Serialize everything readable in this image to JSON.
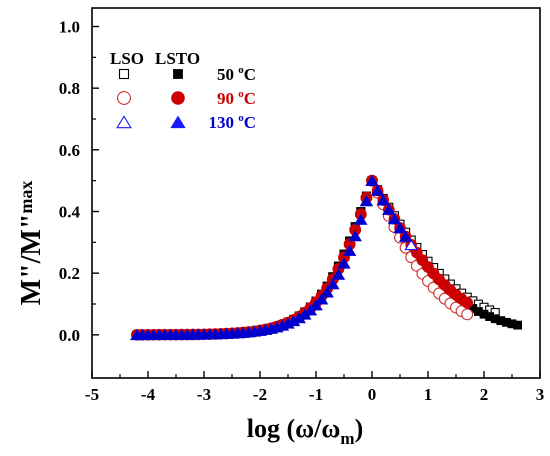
{
  "chart_data": {
    "type": "scatter",
    "xlabel_main": "log (ω/ω",
    "xlabel_sub": "m",
    "xlabel_close": ")",
    "ylabel_main": "M\"/M\"",
    "ylabel_sub": "max",
    "xlim": [
      -5,
      3
    ],
    "ylim": [
      -0.14,
      1.06
    ],
    "x_ticks": [
      "-5",
      "-4",
      "-3",
      "-2",
      "-1",
      "0",
      "1",
      "2",
      "3"
    ],
    "y_ticks": [
      "0.0",
      "0.2",
      "0.4",
      "0.6",
      "0.8",
      "1.0"
    ],
    "grid": false,
    "legend": {
      "placement": "top-left",
      "col_headers": [
        "LSO",
        "LSTO"
      ],
      "temperatures": [
        "50 °C",
        "90 °C",
        "130 °C"
      ],
      "temp_colors": [
        "#000000",
        "#cc0000",
        "#0000cc"
      ]
    },
    "colors": {
      "t50": "#000000",
      "t90_lso": "#cc3333",
      "t90_lsto": "#cc0000",
      "t130": "#1a1aff"
    },
    "peak_window": {
      "t50": [
        -2.0,
        0.64
      ],
      "t90": [
        -1.7,
        0.41
      ],
      "t130": [
        -1.6,
        0.44
      ]
    },
    "series": [
      {
        "name": "LSO 50 °C",
        "marker": "square",
        "filled": false,
        "color": "#000000",
        "x_start": -2.0,
        "x_end": 2.2,
        "step": 0.1,
        "shape": {
          "low": [
            1.48,
            0.62
          ],
          "high_left": [
            1.2,
            0.72
          ],
          "high_right": [
            0.42,
            1.2
          ]
        }
      },
      {
        "name": "LSTO 50 °C",
        "marker": "square",
        "filled": true,
        "color": "#000000",
        "x_start": -4.2,
        "x_end": 2.6,
        "step": 0.1,
        "shape": {
          "low": [
            1.48,
            0.62
          ],
          "high_left": [
            1.2,
            0.72
          ],
          "high_right": [
            0.59,
            0.97
          ]
        }
      },
      {
        "name": "LSO 90 °C",
        "marker": "circle",
        "filled": false,
        "color": "#cc3333",
        "x_start": -1.7,
        "x_end": 1.7,
        "step": 0.1,
        "shape": {
          "low": [
            1.48,
            0.62
          ],
          "high_left": [
            1.3,
            0.75
          ],
          "high_right": [
            0.45,
            1.5
          ]
        }
      },
      {
        "name": "LSTO 90 °C",
        "marker": "circle",
        "filled": true,
        "color": "#cc0000",
        "x_start": -4.2,
        "x_end": 1.7,
        "step": 0.1,
        "shape": {
          "low": [
            1.48,
            0.62
          ],
          "high_left": [
            1.3,
            0.75
          ],
          "high_right": [
            0.55,
            1.0
          ]
        }
      },
      {
        "name": "LSO 130 °C",
        "marker": "triangle",
        "filled": false,
        "color": "#1a1aff",
        "x_start": -4.2,
        "x_end": 0.7,
        "step": 0.1,
        "shape": {
          "low": [
            1.48,
            0.62
          ],
          "high_left": [
            1.4,
            0.85
          ],
          "high_right": [
            0.55,
            1.0
          ]
        }
      },
      {
        "name": "LSTO 130 °C",
        "marker": "triangle",
        "filled": true,
        "color": "#0000cc",
        "x_start": -4.2,
        "x_end": 0.6,
        "step": 0.1,
        "shape": {
          "low": [
            1.48,
            0.62
          ],
          "high_left": [
            1.4,
            0.85
          ],
          "high_right": [
            0.55,
            1.0
          ]
        }
      }
    ]
  }
}
